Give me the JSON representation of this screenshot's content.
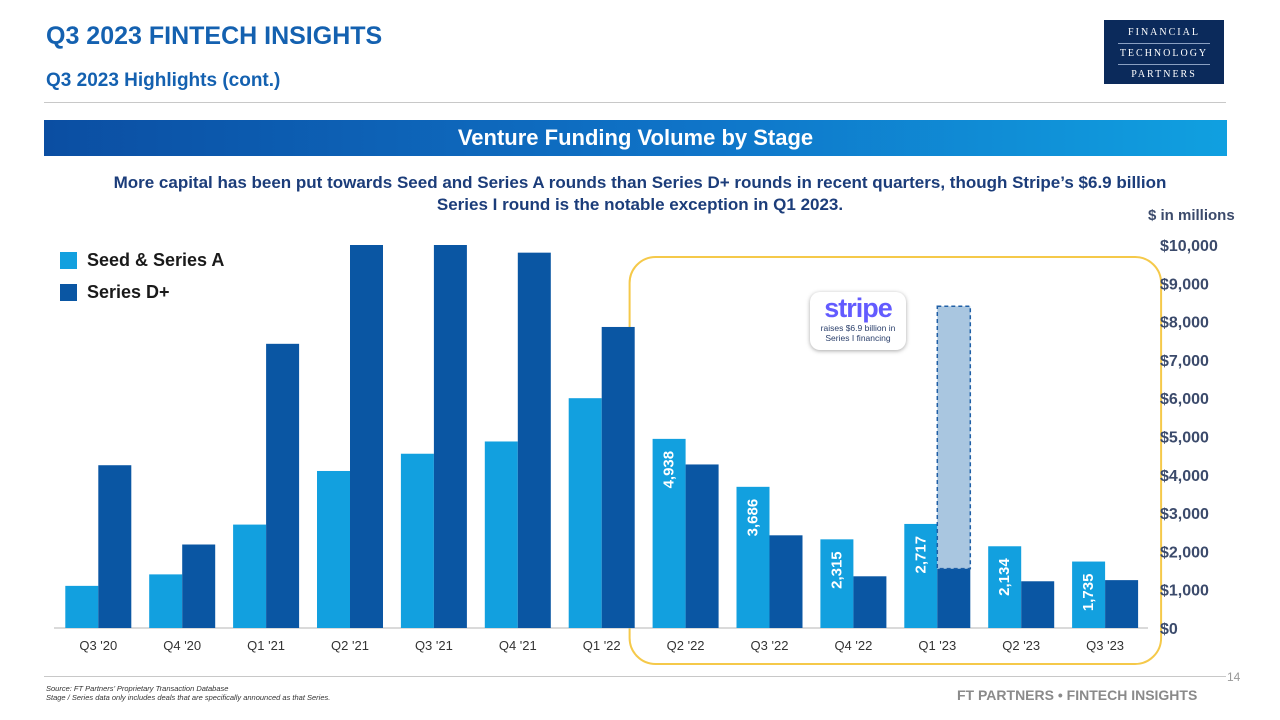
{
  "header": {
    "title": "Q3 2023 FINTECH INSIGHTS",
    "subtitle": "Q3 2023 Highlights (cont.)",
    "logo": [
      "FINANCIAL",
      "TECHNOLOGY",
      "PARTNERS"
    ]
  },
  "banner": "Venture Funding Volume by Stage",
  "description": "More capital has been put towards Seed and Series A rounds than Series D+ rounds in recent quarters, though Stripe’s $6.9 billion Series I round is the notable exception in Q1 2023.",
  "units_label": "$ in millions",
  "annotation": {
    "logo_text": "stripe",
    "caption_line1": "raises $6.9 billion in",
    "caption_line2": "Series I financing"
  },
  "footer": {
    "source_line1": "Source: FT Partners’ Proprietary Transaction Database",
    "source_line2": "Stage / Series data only includes deals that are specifically announced as that Series.",
    "brand": "FT PARTNERS • FINTECH INSIGHTS",
    "page_number": "14"
  },
  "colors": {
    "seed": "#12a0df",
    "seriesD": "#0a56a3",
    "stripe_highlight": "#a9c6e0",
    "highlight_border": "#f5c94a",
    "title_blue": "#1461b0"
  },
  "chart_data": {
    "type": "bar",
    "categories": [
      "Q3 '20",
      "Q4 '20",
      "Q1 '21",
      "Q2 '21",
      "Q3 '21",
      "Q4 '21",
      "Q1 '22",
      "Q2 '22",
      "Q3 '22",
      "Q4 '22",
      "Q1 '23",
      "Q2 '23",
      "Q3 '23"
    ],
    "series": [
      {
        "name": "Seed & Series A",
        "values": [
          1100,
          1400,
          2700,
          4100,
          4550,
          4870,
          6000,
          4938,
          3686,
          2315,
          2717,
          2134,
          1735
        ],
        "data_labels": [
          null,
          null,
          null,
          null,
          null,
          null,
          null,
          "4,938",
          "3,686",
          "2,315",
          "2,717",
          "2,134",
          "1,735"
        ]
      },
      {
        "name": "Series D+",
        "values": [
          4250,
          2180,
          7420,
          10000,
          10000,
          9800,
          7860,
          4270,
          2420,
          1350,
          1550,
          1220,
          1250
        ]
      }
    ],
    "stripe_extra": {
      "category": "Q1 '23",
      "base": 1550,
      "top": 8400
    },
    "highlight_range": [
      "Q2 '22",
      "Q3 '23"
    ],
    "y_ticks": [
      "$0",
      "$1,000",
      "$2,000",
      "$3,000",
      "$4,000",
      "$5,000",
      "$6,000",
      "$7,000",
      "$8,000",
      "$9,000",
      "$10,000"
    ],
    "ylim": [
      0,
      10000
    ],
    "legend_position": "top-left",
    "grid": false
  }
}
